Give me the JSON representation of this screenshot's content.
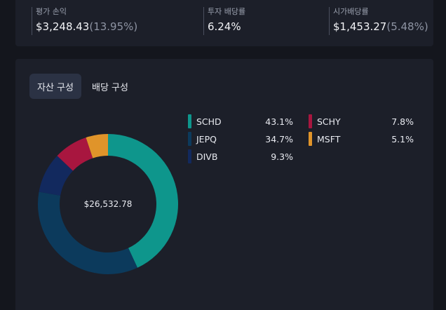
{
  "stats": [
    {
      "label": "평가 손익",
      "value": "$3,248.43",
      "sub": "(13.95%)"
    },
    {
      "label": "투자 배당률",
      "value": "6.24%",
      "sub": ""
    },
    {
      "label": "시가배당률",
      "value": "$1,453.27",
      "sub": "(5.48%)"
    }
  ],
  "tabs": [
    {
      "label": "자산 구성",
      "active": true
    },
    {
      "label": "배당 구성",
      "active": false
    }
  ],
  "donut": {
    "center_value": "$26,532.78"
  },
  "chart_data": {
    "type": "pie",
    "title": "",
    "center_label": "$26,532.78",
    "categories": [
      "SCHD",
      "JEPQ",
      "DIVB",
      "SCHY",
      "MSFT"
    ],
    "values": [
      43.1,
      34.7,
      9.3,
      7.8,
      5.1
    ],
    "labels": [
      "43.1%",
      "34.7%",
      "9.3%",
      "7.8%",
      "5.1%"
    ],
    "colors": [
      "#0e968c",
      "#0c3a5c",
      "#12295e",
      "#a8163f",
      "#e0942a"
    ],
    "legend": "right"
  }
}
